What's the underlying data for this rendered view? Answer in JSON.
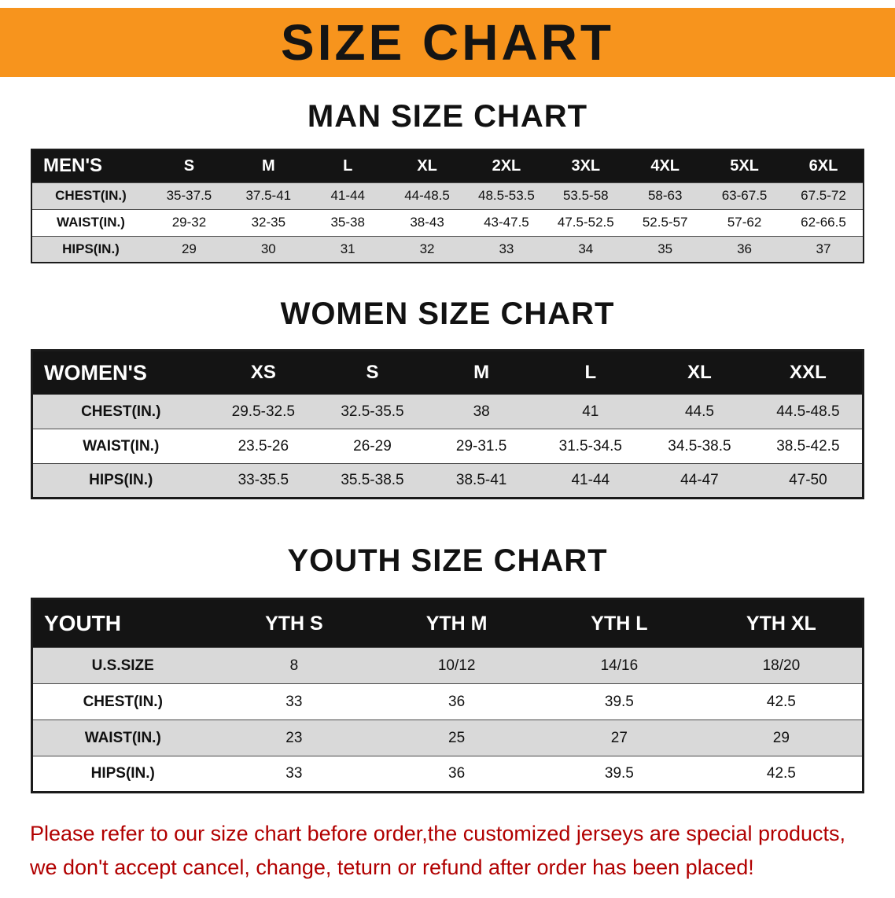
{
  "banner": {
    "title": "SIZE CHART",
    "bg_color": "#F7941D"
  },
  "sections": {
    "men": {
      "heading": "MAN SIZE CHART"
    },
    "women": {
      "heading": "WOMEN SIZE CHART"
    },
    "youth": {
      "heading": "YOUTH SIZE CHART"
    }
  },
  "tables": {
    "men": {
      "label": "MEN'S",
      "columns": [
        "S",
        "M",
        "L",
        "XL",
        "2XL",
        "3XL",
        "4XL",
        "5XL",
        "6XL"
      ],
      "rows": [
        {
          "label": "CHEST(IN.)",
          "values": [
            "35-37.5",
            "37.5-41",
            "41-44",
            "44-48.5",
            "48.5-53.5",
            "53.5-58",
            "58-63",
            "63-67.5",
            "67.5-72"
          ]
        },
        {
          "label": "WAIST(IN.)",
          "values": [
            "29-32",
            "32-35",
            "35-38",
            "38-43",
            "43-47.5",
            "47.5-52.5",
            "52.5-57",
            "57-62",
            "62-66.5"
          ]
        },
        {
          "label": "HIPS(IN.)",
          "values": [
            "29",
            "30",
            "31",
            "32",
            "33",
            "34",
            "35",
            "36",
            "37"
          ]
        }
      ]
    },
    "women": {
      "label": "WOMEN'S",
      "columns": [
        "XS",
        "S",
        "M",
        "L",
        "XL",
        "XXL"
      ],
      "rows": [
        {
          "label": "CHEST(IN.)",
          "values": [
            "29.5-32.5",
            "32.5-35.5",
            "38",
            "41",
            "44.5",
            "44.5-48.5"
          ]
        },
        {
          "label": "WAIST(IN.)",
          "values": [
            "23.5-26",
            "26-29",
            "29-31.5",
            "31.5-34.5",
            "34.5-38.5",
            "38.5-42.5"
          ]
        },
        {
          "label": "HIPS(IN.)",
          "values": [
            "33-35.5",
            "35.5-38.5",
            "38.5-41",
            "41-44",
            "44-47",
            "47-50"
          ]
        }
      ]
    },
    "youth": {
      "label": "YOUTH",
      "columns": [
        "YTH S",
        "YTH M",
        "YTH L",
        "YTH XL"
      ],
      "rows": [
        {
          "label": "U.S.SIZE",
          "values": [
            "8",
            "10/12",
            "14/16",
            "18/20"
          ]
        },
        {
          "label": "CHEST(IN.)",
          "values": [
            "33",
            "36",
            "39.5",
            "42.5"
          ]
        },
        {
          "label": "WAIST(IN.)",
          "values": [
            "23",
            "25",
            "27",
            "29"
          ]
        },
        {
          "label": "HIPS(IN.)",
          "values": [
            "33",
            "36",
            "39.5",
            "42.5"
          ]
        }
      ]
    }
  },
  "footer": {
    "line1": "Please refer to our size chart before order,the customized jerseys are special products,",
    "line2": "we don't accept cancel, change, teturn or refund after order has been placed!",
    "text_color": "#b10000"
  }
}
